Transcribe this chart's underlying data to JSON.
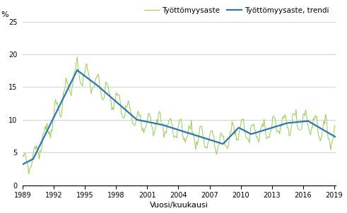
{
  "ylabel": "%",
  "xlabel": "Vuosi/kuukausi",
  "legend_raw": "Työttömyysaste",
  "legend_trend": "Työttömyysaste, trendi",
  "line_color_raw": "#92d050",
  "line_color_trend": "#2e75b6",
  "ylim": [
    0,
    25
  ],
  "yticks": [
    0,
    5,
    10,
    15,
    20,
    25
  ],
  "xticks": [
    1989,
    1992,
    1995,
    1998,
    2001,
    2004,
    2007,
    2010,
    2013,
    2016,
    2019
  ],
  "background_color": "#ffffff",
  "grid_color": "#bfbfbf"
}
